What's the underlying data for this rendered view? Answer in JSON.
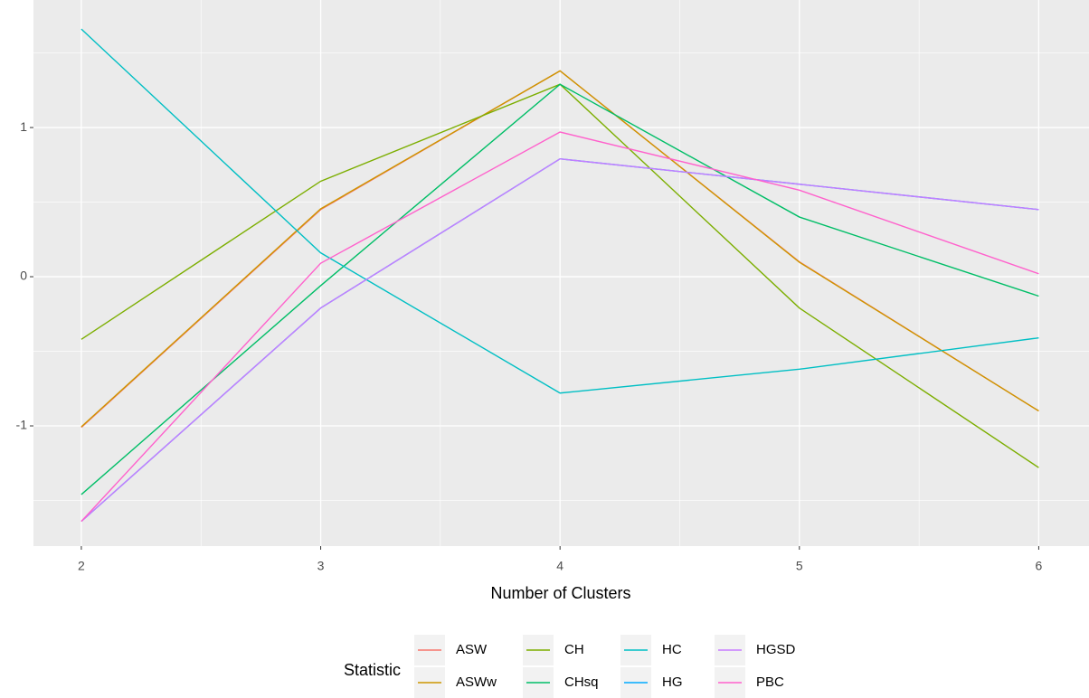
{
  "chart_data": {
    "type": "line",
    "x_label": "Number of Clusters",
    "x": [
      2,
      3,
      4,
      5,
      6
    ],
    "xlim": [
      1.8,
      6.21
    ],
    "xticks": [
      2,
      3,
      4,
      5,
      6
    ],
    "ylim": [
      -1.806,
      1.855
    ],
    "yticks": [
      -1,
      0,
      1
    ],
    "x_minor_grid": [
      2.5,
      3.5,
      4.5,
      5.5
    ],
    "y_minor_grid": [
      -1.5,
      -0.5,
      0.5,
      1.5
    ],
    "grid": true,
    "legend_title": "Statistic",
    "legend_position": "bottom",
    "series": [
      {
        "name": "ASW",
        "color": "#F8766D",
        "values": [
          -1.01,
          0.45,
          1.38,
          0.1,
          -0.9
        ]
      },
      {
        "name": "ASWw",
        "color": "#CD9600",
        "values": [
          -1.006,
          0.455,
          1.38,
          0.097,
          -0.9
        ]
      },
      {
        "name": "CH",
        "color": "#7CAE00",
        "values": [
          -0.42,
          0.64,
          1.29,
          -0.21,
          -1.28
        ]
      },
      {
        "name": "CHsq",
        "color": "#00BE67",
        "values": [
          -1.46,
          -0.06,
          1.29,
          0.4,
          -0.13
        ]
      },
      {
        "name": "HC",
        "color": "#00BFC4",
        "values": [
          1.66,
          0.16,
          -0.78,
          -0.62,
          -0.41
        ]
      },
      {
        "name": "HG",
        "color": "#00A9FF",
        "values": [
          -1.64,
          -0.21,
          0.79,
          0.62,
          0.45
        ]
      },
      {
        "name": "HGSD",
        "color": "#C77CFF",
        "values": [
          -1.64,
          -0.21,
          0.79,
          0.62,
          0.45
        ]
      },
      {
        "name": "PBC",
        "color": "#FF61CC",
        "values": [
          -1.64,
          0.09,
          0.97,
          0.58,
          0.02
        ]
      }
    ]
  }
}
